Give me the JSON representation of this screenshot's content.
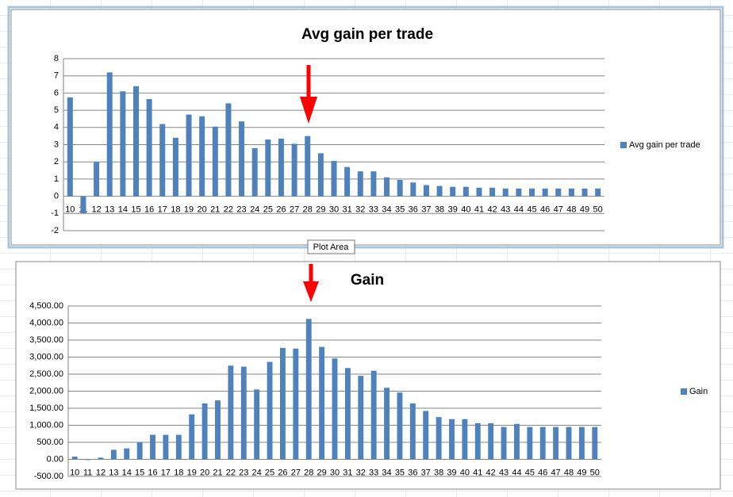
{
  "chart_data": [
    {
      "type": "bar",
      "title": "Avg gain per trade",
      "categories": [
        "10",
        "11",
        "12",
        "13",
        "14",
        "15",
        "16",
        "17",
        "18",
        "19",
        "20",
        "21",
        "22",
        "23",
        "24",
        "25",
        "26",
        "27",
        "28",
        "29",
        "30",
        "31",
        "32",
        "33",
        "34",
        "35",
        "36",
        "37",
        "38",
        "39",
        "40",
        "41",
        "42",
        "43",
        "44",
        "45",
        "46",
        "47",
        "48",
        "49",
        "50"
      ],
      "series": [
        {
          "name": "Avg gain  per trade",
          "color": "#4f81bd",
          "values": [
            5.75,
            -1.0,
            2.0,
            7.2,
            6.1,
            6.4,
            5.65,
            4.2,
            3.4,
            4.75,
            4.65,
            4.05,
            5.4,
            4.35,
            2.8,
            3.3,
            3.35,
            3.05,
            3.5,
            2.5,
            2.05,
            1.7,
            1.45,
            1.45,
            1.1,
            0.95,
            0.8,
            0.65,
            0.6,
            0.55,
            0.55,
            0.5,
            0.5,
            0.45,
            0.45,
            0.45,
            0.45,
            0.45,
            0.45,
            0.45,
            0.45
          ]
        }
      ],
      "ylim": [
        -2,
        8
      ],
      "yticks": [
        -2,
        -1,
        0,
        1,
        2,
        3,
        4,
        5,
        6,
        7,
        8
      ],
      "grid": true,
      "legend": "right"
    },
    {
      "type": "bar",
      "title": "Gain",
      "categories": [
        "10",
        "11",
        "12",
        "13",
        "14",
        "15",
        "16",
        "17",
        "18",
        "19",
        "20",
        "21",
        "22",
        "23",
        "24",
        "25",
        "26",
        "27",
        "28",
        "29",
        "30",
        "31",
        "32",
        "33",
        "34",
        "35",
        "36",
        "37",
        "38",
        "39",
        "40",
        "41",
        "42",
        "43",
        "44",
        "45",
        "46",
        "47",
        "48",
        "49",
        "50"
      ],
      "series": [
        {
          "name": "Gain",
          "color": "#4f81bd",
          "values": [
            80,
            -20,
            50,
            280,
            320,
            500,
            720,
            720,
            720,
            1320,
            1640,
            1730,
            2750,
            2720,
            2050,
            2860,
            3270,
            3250,
            4120,
            3300,
            2960,
            2680,
            2450,
            2600,
            2100,
            1960,
            1640,
            1420,
            1240,
            1180,
            1180,
            1060,
            1060,
            950,
            1040,
            950,
            950,
            950,
            950,
            950,
            950
          ]
        }
      ],
      "ylim": [
        -500,
        4500
      ],
      "yticks": [
        {
          "value": -500,
          "label": "-500.00"
        },
        {
          "value": 0,
          "label": "0.00"
        },
        {
          "value": 500,
          "label": "500.00"
        },
        {
          "value": 1000,
          "label": "1,000.00"
        },
        {
          "value": 1500,
          "label": "1,500.00"
        },
        {
          "value": 2000,
          "label": "2,000.00"
        },
        {
          "value": 2500,
          "label": "2,500.00"
        },
        {
          "value": 3000,
          "label": "3,000.00"
        },
        {
          "value": 3500,
          "label": "3,500.00"
        },
        {
          "value": 4000,
          "label": "4,000.00"
        },
        {
          "value": 4500,
          "label": "4,500.00"
        }
      ],
      "grid": true,
      "legend": "right"
    }
  ],
  "tooltip": "Plot Area"
}
